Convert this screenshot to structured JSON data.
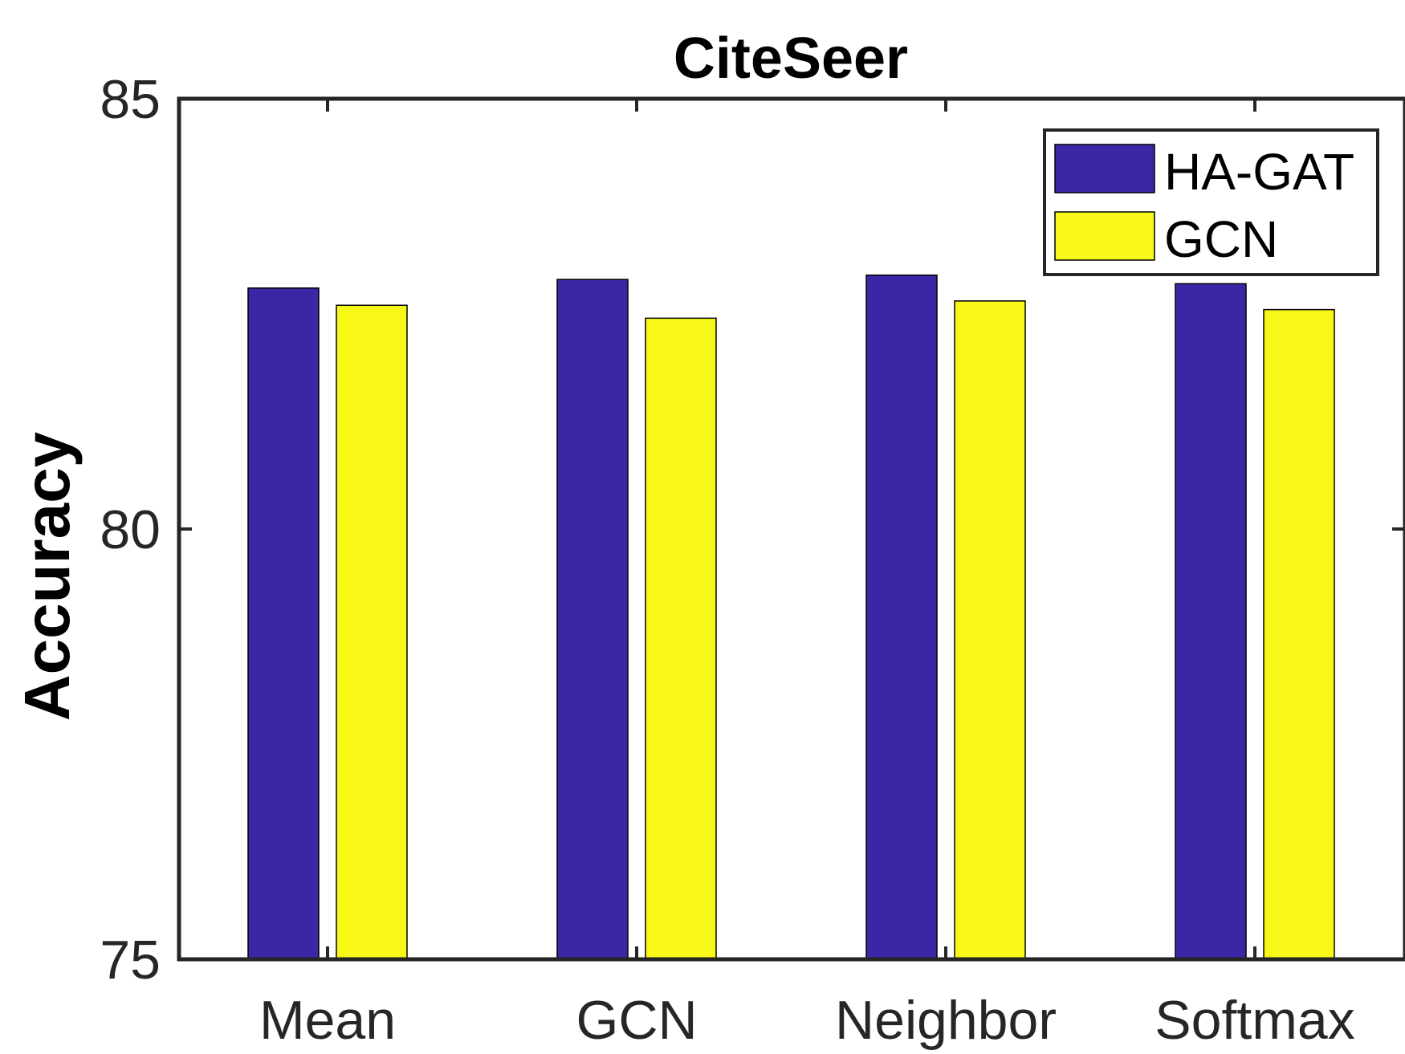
{
  "chart_data": {
    "type": "bar",
    "title": "CiteSeer",
    "xlabel": "",
    "ylabel": "Accuracy",
    "categories": [
      "Mean",
      "GCN",
      "Neighbor",
      "Softmax"
    ],
    "series": [
      {
        "name": "HA-GAT",
        "color": "#3b27a6",
        "values": [
          82.8,
          82.9,
          82.95,
          82.85
        ]
      },
      {
        "name": "GCN",
        "color": "#f7f718",
        "values": [
          82.6,
          82.45,
          82.65,
          82.55
        ]
      }
    ],
    "ylim": [
      75,
      85
    ],
    "yticks": [
      "75",
      "80",
      "85"
    ],
    "grid": false,
    "legend_position": "top-right"
  }
}
